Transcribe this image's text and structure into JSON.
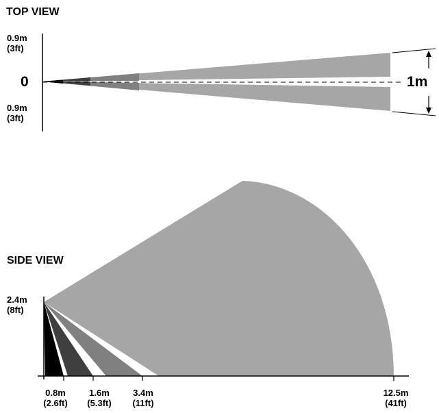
{
  "top_view": {
    "title": "TOP VIEW",
    "upper_label": {
      "m": "0.9m",
      "ft": "(3ft)"
    },
    "zero_label": "0",
    "lower_label": {
      "m": "0.9m",
      "ft": "(3ft)"
    },
    "width_label": "1m"
  },
  "side_view": {
    "title": "SIDE VIEW",
    "height_label": {
      "m": "2.4m",
      "ft": "(8ft)"
    },
    "distances": [
      {
        "m": "0.8m",
        "ft": "(2.6ft)"
      },
      {
        "m": "1.6m",
        "ft": "(5.3ft)"
      },
      {
        "m": "3.4m",
        "ft": "(11ft)"
      },
      {
        "m": "12.5m",
        "ft": "(41ft)"
      }
    ]
  },
  "colors": {
    "zone_far": "#a6a6a6",
    "zone_mid": "#808080",
    "zone_near": "#3f3f3f",
    "zone_closest": "#000000"
  }
}
